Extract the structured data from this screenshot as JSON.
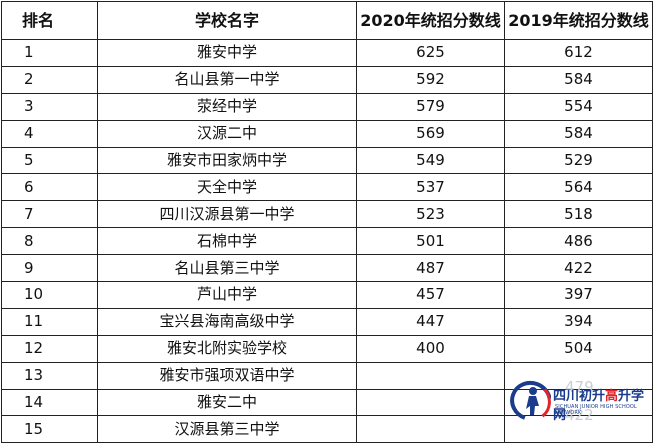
{
  "table": {
    "headers": [
      "排名",
      "学校名字",
      "2020年统招分数线",
      "2019年统招分数线"
    ],
    "rows": [
      {
        "rank": "1",
        "school": "雅安中学",
        "y2020": "625",
        "y2019": "612"
      },
      {
        "rank": "2",
        "school": "名山县第一中学",
        "y2020": "592",
        "y2019": "584"
      },
      {
        "rank": "3",
        "school": "荥经中学",
        "y2020": "579",
        "y2019": "554"
      },
      {
        "rank": "4",
        "school": "汉源二中",
        "y2020": "569",
        "y2019": "584"
      },
      {
        "rank": "5",
        "school": "雅安市田家炳中学",
        "y2020": "549",
        "y2019": "529"
      },
      {
        "rank": "6",
        "school": "天全中学",
        "y2020": "537",
        "y2019": "564"
      },
      {
        "rank": "7",
        "school": "四川汉源县第一中学",
        "y2020": "523",
        "y2019": "518"
      },
      {
        "rank": "8",
        "school": "石棉中学",
        "y2020": "501",
        "y2019": "486"
      },
      {
        "rank": "9",
        "school": "名山县第三中学",
        "y2020": "487",
        "y2019": "422"
      },
      {
        "rank": "10",
        "school": "芦山中学",
        "y2020": "457",
        "y2019": "397"
      },
      {
        "rank": "11",
        "school": "宝兴县海南高级中学",
        "y2020": "447",
        "y2019": "394"
      },
      {
        "rank": "12",
        "school": "雅安北附实验学校",
        "y2020": "400",
        "y2019": "504"
      },
      {
        "rank": "13",
        "school": "雅安市强项双语中学",
        "y2020": "",
        "y2019": ""
      },
      {
        "rank": "14",
        "school": "雅安二中",
        "y2020": "",
        "y2019": ""
      },
      {
        "rank": "15",
        "school": "汉源县第三中学",
        "y2020": "",
        "y2019": ""
      }
    ]
  },
  "watermark": {
    "title_main": "四川初升",
    "title_accent": "高",
    "title_tail": "升学网",
    "subtitle": "SICHUAN JUNIOR HIGH SCHOOL NETWORK",
    "ghost_values": [
      "479",
      "422"
    ],
    "colors": {
      "blue": "#1b3c8c",
      "red": "#e0262b"
    }
  }
}
